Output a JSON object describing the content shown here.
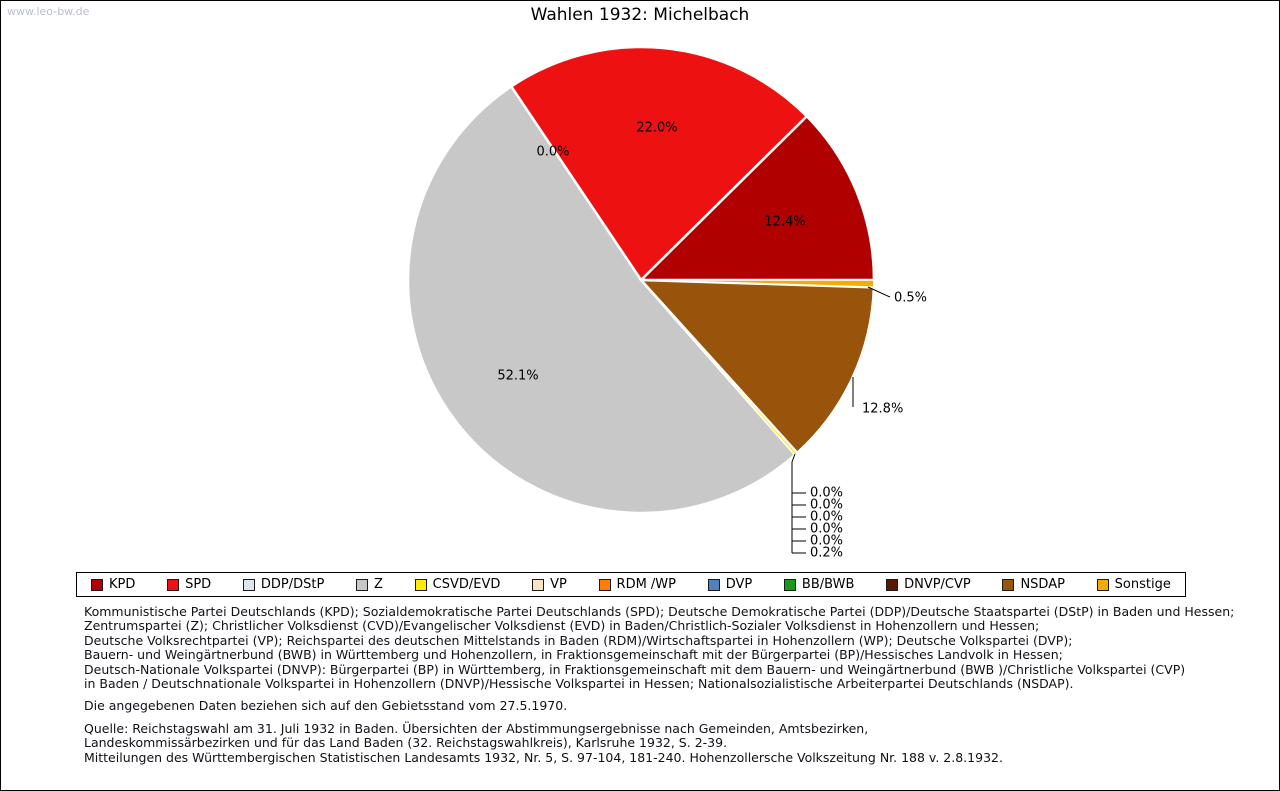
{
  "watermark": "www.leo-bw.de",
  "title": "Wahlen 1932: Michelbach",
  "chart_data": {
    "type": "pie",
    "title": "Wahlen 1932: Michelbach",
    "unit": "percent",
    "direction": "counterclockwise",
    "start_angle_deg": 0,
    "series": [
      {
        "label": "KPD",
        "value": 12.4,
        "color": "#b00000"
      },
      {
        "label": "SPD",
        "value": 22.0,
        "color": "#ee1111"
      },
      {
        "label": "DDP/DStP",
        "value": 0.0,
        "color": "#dbe5f1"
      },
      {
        "label": "Z",
        "value": 52.1,
        "color": "#c8c8c8"
      },
      {
        "label": "CSVD/EVD",
        "value": 0.2,
        "color": "#ffeb00"
      },
      {
        "label": "VP",
        "value": 0.0,
        "color": "#fbe2c5"
      },
      {
        "label": "RDM /WP",
        "value": 0.0,
        "color": "#ff7d00"
      },
      {
        "label": "DVP",
        "value": 0.0,
        "color": "#4f81bd"
      },
      {
        "label": "BB/BWB",
        "value": 0.0,
        "color": "#1a9a1a"
      },
      {
        "label": "DNVP/CVP",
        "value": 0.0,
        "color": "#5a1505"
      },
      {
        "label": "NSDAP",
        "value": 12.8,
        "color": "#98540a"
      },
      {
        "label": "Sonstige",
        "value": 0.5,
        "color": "#f6ab00"
      }
    ]
  },
  "labels": {
    "kpd": "12.4%",
    "spd": "22.0%",
    "ddp": "0.0%",
    "z": "52.1%",
    "nsdap": "12.8%",
    "sonstige": "0.5%",
    "stack": [
      "0.0%",
      "0.0%",
      "0.0%",
      "0.0%",
      "0.0%",
      "0.2%"
    ]
  },
  "footnotes": {
    "parties_lines": [
      "Kommunistische Partei Deutschlands (KPD); Sozialdemokratische Partei Deutschlands (SPD); Deutsche Demokratische Partei (DDP)/Deutsche Staatspartei (DStP) in Baden und Hessen;",
      "Zentrumspartei (Z); Christlicher Volksdienst (CVD)/Evangelischer Volksdienst (EVD) in Baden/Christlich-Sozialer Volksdienst in Hohenzollern und Hessen;",
      "Deutsche Volksrechtpartei (VP); Reichspartei des deutschen Mittelstands in Baden (RDM)/Wirtschaftspartei in Hohenzollern (WP); Deutsche Volkspartei (DVP);",
      "Bauern- und Weingärtnerbund (BWB) in Württemberg und Hohenzollern, in Fraktionsgemeinschaft mit der Bürgerpartei (BP)/Hessisches Landvolk in Hessen;",
      "Deutsch-Nationale Volkspartei (DNVP): Bürgerpartei (BP) in Württemberg, in Fraktionsgemeinschaft mit dem Bauern- und Weingärtnerbund (BWB )/Christliche Volkspartei (CVP)",
      "in Baden / Deutschnationale Volkspartei in Hohenzollern (DNVP)/Hessische Volkspartei in Hessen; Nationalsozialistische Arbeiterpartei Deutschlands (NSDAP)."
    ],
    "note": "Die angegebenen Daten beziehen sich auf den Gebietsstand vom 27.5.1970.",
    "source_lines": [
      "Quelle: Reichstagswahl am 31. Juli 1932 in Baden. Übersichten der Abstimmungsergebnisse nach Gemeinden, Amtsbezirken,",
      "Landeskommissärbezirken und für das Land Baden (32. Reichstagswahlkreis), Karlsruhe 1932, S. 2-39.",
      "Mitteilungen des Württembergischen Statistischen Landesamts 1932, Nr. 5, S. 97-104, 181-240. Hohenzollersche Volkszeitung Nr. 188 v. 2.8.1932."
    ]
  }
}
